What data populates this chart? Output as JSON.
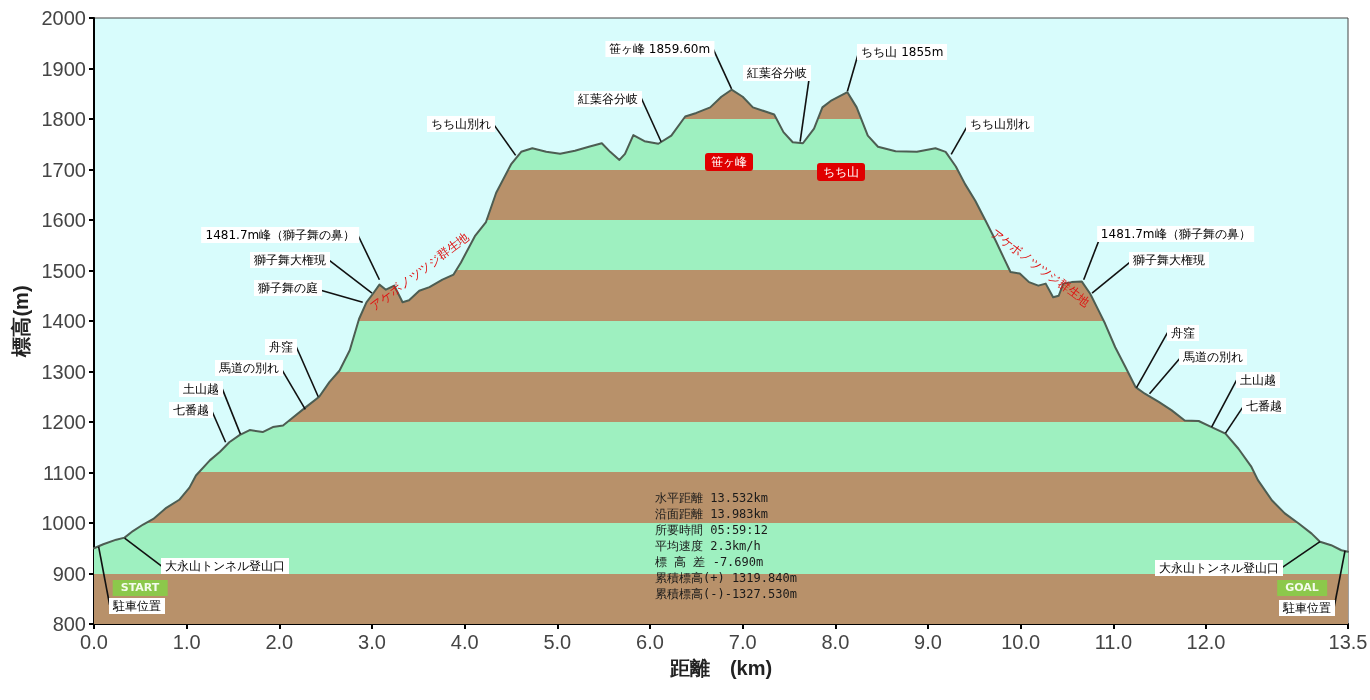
{
  "chart_data": {
    "type": "area",
    "xlabel": "距離　(km)",
    "ylabel": "標高(m)",
    "color": "#4d5d52",
    "x": [
      0,
      0.1,
      0.24,
      0.33,
      0.42,
      0.53,
      0.64,
      0.78,
      0.92,
      1.03,
      1.1,
      1.25,
      1.36,
      1.46,
      1.57,
      1.68,
      1.82,
      1.93,
      2.04,
      2.14,
      2.29,
      2.43,
      2.54,
      2.65,
      2.76,
      2.86,
      2.94,
      3.01,
      3.08,
      3.15,
      3.24,
      3.33,
      3.4,
      3.51,
      3.62,
      3.76,
      3.88,
      3.96,
      4.11,
      4.23,
      4.34,
      4.5,
      4.61,
      4.73,
      4.88,
      5.03,
      5.19,
      5.34,
      5.48,
      5.57,
      5.67,
      5.73,
      5.82,
      5.94,
      6.09,
      6.23,
      6.38,
      6.5,
      6.65,
      6.77,
      6.88,
      7,
      7.11,
      7.34,
      7.44,
      7.54,
      7.65,
      7.77,
      7.86,
      7.96,
      8.13,
      8.23,
      8.35,
      8.46,
      8.65,
      8.88,
      9.08,
      9.19,
      9.3,
      9.4,
      9.51,
      9.62,
      9.73,
      9.83,
      9.89,
      9.99,
      10.09,
      10.19,
      10.27,
      10.35,
      10.41,
      10.46,
      10.55,
      10.66,
      10.75,
      10.84,
      10.91,
      11.02,
      11.13,
      11.24,
      11.34,
      11.49,
      11.63,
      11.77,
      11.92,
      12.06,
      12.21,
      12.35,
      12.49,
      12.56,
      12.71,
      12.85,
      13,
      13.14,
      13.23,
      13.35,
      13.46,
      13.532
    ],
    "values": [
      950,
      958,
      967,
      971,
      984,
      997,
      1008,
      1030,
      1046,
      1070,
      1094,
      1124,
      1141,
      1160,
      1174,
      1184,
      1180,
      1190,
      1193,
      1208,
      1230,
      1250,
      1279,
      1302,
      1342,
      1404,
      1437,
      1454,
      1472,
      1462,
      1470,
      1437,
      1441,
      1460,
      1467,
      1482,
      1492,
      1516,
      1568,
      1596,
      1654,
      1710,
      1735,
      1742,
      1735,
      1731,
      1737,
      1745,
      1752,
      1735,
      1719,
      1731,
      1768,
      1756,
      1751,
      1767,
      1805,
      1812,
      1823,
      1844,
      1858,
      1844,
      1823,
      1809,
      1774,
      1754,
      1752,
      1781,
      1823,
      1837,
      1853,
      1823,
      1767,
      1745,
      1736,
      1735,
      1742,
      1735,
      1706,
      1671,
      1638,
      1599,
      1559,
      1520,
      1497,
      1494,
      1477,
      1470,
      1474,
      1447,
      1450,
      1474,
      1477,
      1478,
      1454,
      1421,
      1395,
      1348,
      1309,
      1269,
      1256,
      1240,
      1223,
      1203,
      1202,
      1190,
      1177,
      1147,
      1111,
      1085,
      1045,
      1019,
      999,
      979,
      963,
      956,
      946,
      943
    ],
    "xlim": [
      0,
      13.532
    ],
    "xticks": [
      {
        "value": 0,
        "label": "0.0"
      },
      {
        "value": 1,
        "label": "1.0"
      },
      {
        "value": 2,
        "label": "2.0"
      },
      {
        "value": 3,
        "label": "3.0"
      },
      {
        "value": 4,
        "label": "4.0"
      },
      {
        "value": 5,
        "label": "5.0"
      },
      {
        "value": 6,
        "label": "6.0"
      },
      {
        "value": 7,
        "label": "7.0"
      },
      {
        "value": 8,
        "label": "8.0"
      },
      {
        "value": 9,
        "label": "9.0"
      },
      {
        "value": 10,
        "label": "10.0"
      },
      {
        "value": 11,
        "label": "11.0"
      },
      {
        "value": 12,
        "label": "12.0"
      },
      {
        "value": 13.532,
        "label": "13.5"
      }
    ],
    "ylim": [
      800,
      2000
    ],
    "yticks": [
      800,
      900,
      1000,
      1100,
      1200,
      1300,
      1400,
      1500,
      1600,
      1700,
      1800,
      1900,
      2000
    ],
    "annotations": [
      {
        "text": "駐車位置",
        "x": 0.05,
        "y": 953
      },
      "START",
      {
        "text": "大永山トンネル登山口",
        "x": 0.33,
        "y": 970
      },
      {
        "text": "七番越",
        "x": 1.42,
        "y": 1160
      },
      {
        "text": "土山越",
        "x": 1.58,
        "y": 1176
      },
      {
        "text": "馬道の別れ",
        "x": 2.28,
        "y": 1225
      },
      {
        "text": "舟窪",
        "x": 2.42,
        "y": 1250
      },
      {
        "text": "獅子舞の庭",
        "x": 2.9,
        "y": 1437
      },
      {
        "text": "獅子舞大権現",
        "x": 3.0,
        "y": 1455
      },
      {
        "text": "1481.7m峰（獅子舞の鼻）",
        "x": 3.08,
        "y": 1481.7
      },
      "アケボノツツジ群生地",
      {
        "text": "ちち山別れ",
        "x": 4.55,
        "y": 1728
      },
      {
        "text": "紅葉谷分岐",
        "x": 6.12,
        "y": 1755
      },
      {
        "text": "笹ヶ峰 1859.60m",
        "x": 6.88,
        "y": 1859.6
      },
      "笹ヶ峰",
      {
        "text": "紅葉谷分岐",
        "x": 7.62,
        "y": 1755
      },
      {
        "text": "ちち山 1855m",
        "x": 8.13,
        "y": 1855
      },
      "ちち山",
      {
        "text": "ちち山別れ",
        "x": 9.25,
        "y": 1730
      },
      "アケボノツツジ群生地",
      {
        "text": "1481.7m峰（獅子舞の鼻）",
        "x": 10.68,
        "y": 1481.7
      },
      {
        "text": "獅子舞大権現",
        "x": 10.77,
        "y": 1455
      },
      {
        "text": "舟窪",
        "x": 11.25,
        "y": 1268
      },
      {
        "text": "馬道の別れ",
        "x": 11.39,
        "y": 1256
      },
      {
        "text": "土山越",
        "x": 12.06,
        "y": 1190
      },
      {
        "text": "七番越",
        "x": 12.21,
        "y": 1178
      },
      {
        "text": "大永山トンネル登山口",
        "x": 13.23,
        "y": 963
      },
      "GOAL",
      {
        "text": "駐車位置",
        "x": 13.5,
        "y": 945
      },
      "水平距離 13.532km",
      "沿面距離 13.983km",
      "所要時間 05:59:12",
      "平均速度 2.3km/h",
      "標 高 差 -7.690m",
      "累積標高(+) 1319.840m",
      "累積標高(-)-1327.530m"
    ]
  }
}
